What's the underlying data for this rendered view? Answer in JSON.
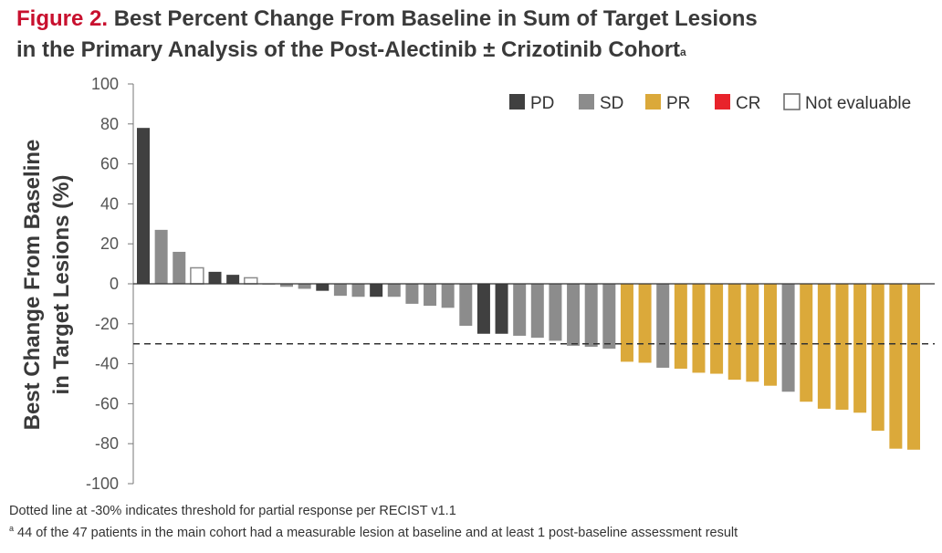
{
  "title": {
    "figure_label": "Figure 2.",
    "line1": "Best Percent Change From Baseline in Sum of Target Lesions",
    "line2": "in the Primary Analysis of the Post-Alectinib ± Crizotinib Cohort",
    "superscript": "a"
  },
  "footnotes": {
    "note1": "Dotted line at -30% indicates threshold for partial response per RECIST v1.1",
    "note2_marker": "a",
    "note2": " 44 of the 47 patients in the main cohort had a measurable lesion at baseline and at least 1 post-baseline assessment result"
  },
  "chart_data": {
    "type": "bar",
    "ylabel_line1": "Best Change From Baseline",
    "ylabel_line2": "in Target Lesions (%)",
    "ylim": [
      -100,
      100
    ],
    "yticks": [
      100,
      80,
      60,
      40,
      20,
      0,
      -20,
      -40,
      -60,
      -80,
      -100
    ],
    "threshold": -30,
    "legend": [
      {
        "key": "PD",
        "label": "PD",
        "color": "#404040"
      },
      {
        "key": "SD",
        "label": "SD",
        "color": "#8c8c8c"
      },
      {
        "key": "PR",
        "label": "PR",
        "color": "#dba93a"
      },
      {
        "key": "CR",
        "label": "CR",
        "color": "#e8232b"
      },
      {
        "key": "NE",
        "label": "Not evaluable",
        "color": "#ffffff"
      }
    ],
    "bars": [
      {
        "value": 78,
        "response": "PD"
      },
      {
        "value": 27,
        "response": "SD"
      },
      {
        "value": 16,
        "response": "SD"
      },
      {
        "value": 8,
        "response": "NE"
      },
      {
        "value": 6,
        "response": "PD"
      },
      {
        "value": 4.5,
        "response": "PD"
      },
      {
        "value": 3,
        "response": "NE"
      },
      {
        "value": 0,
        "response": "SD"
      },
      {
        "value": -1.5,
        "response": "SD"
      },
      {
        "value": -2.5,
        "response": "SD"
      },
      {
        "value": -3.5,
        "response": "PD"
      },
      {
        "value": -6,
        "response": "SD"
      },
      {
        "value": -6.5,
        "response": "SD"
      },
      {
        "value": -6.5,
        "response": "PD"
      },
      {
        "value": -6.5,
        "response": "SD"
      },
      {
        "value": -10,
        "response": "SD"
      },
      {
        "value": -11,
        "response": "SD"
      },
      {
        "value": -12,
        "response": "SD"
      },
      {
        "value": -21,
        "response": "SD"
      },
      {
        "value": -25,
        "response": "PD"
      },
      {
        "value": -25,
        "response": "PD"
      },
      {
        "value": -26,
        "response": "SD"
      },
      {
        "value": -27,
        "response": "SD"
      },
      {
        "value": -28.5,
        "response": "SD"
      },
      {
        "value": -31,
        "response": "SD"
      },
      {
        "value": -31.5,
        "response": "SD"
      },
      {
        "value": -32.5,
        "response": "SD"
      },
      {
        "value": -39,
        "response": "PR"
      },
      {
        "value": -39.5,
        "response": "PR"
      },
      {
        "value": -42,
        "response": "SD"
      },
      {
        "value": -42.5,
        "response": "PR"
      },
      {
        "value": -44.5,
        "response": "PR"
      },
      {
        "value": -45,
        "response": "PR"
      },
      {
        "value": -48,
        "response": "PR"
      },
      {
        "value": -49,
        "response": "PR"
      },
      {
        "value": -51,
        "response": "PR"
      },
      {
        "value": -54,
        "response": "SD"
      },
      {
        "value": -59,
        "response": "PR"
      },
      {
        "value": -62.5,
        "response": "PR"
      },
      {
        "value": -63,
        "response": "PR"
      },
      {
        "value": -64.5,
        "response": "PR"
      },
      {
        "value": -73.5,
        "response": "PR"
      },
      {
        "value": -82.5,
        "response": "PR"
      },
      {
        "value": -83,
        "response": "PR"
      }
    ]
  }
}
